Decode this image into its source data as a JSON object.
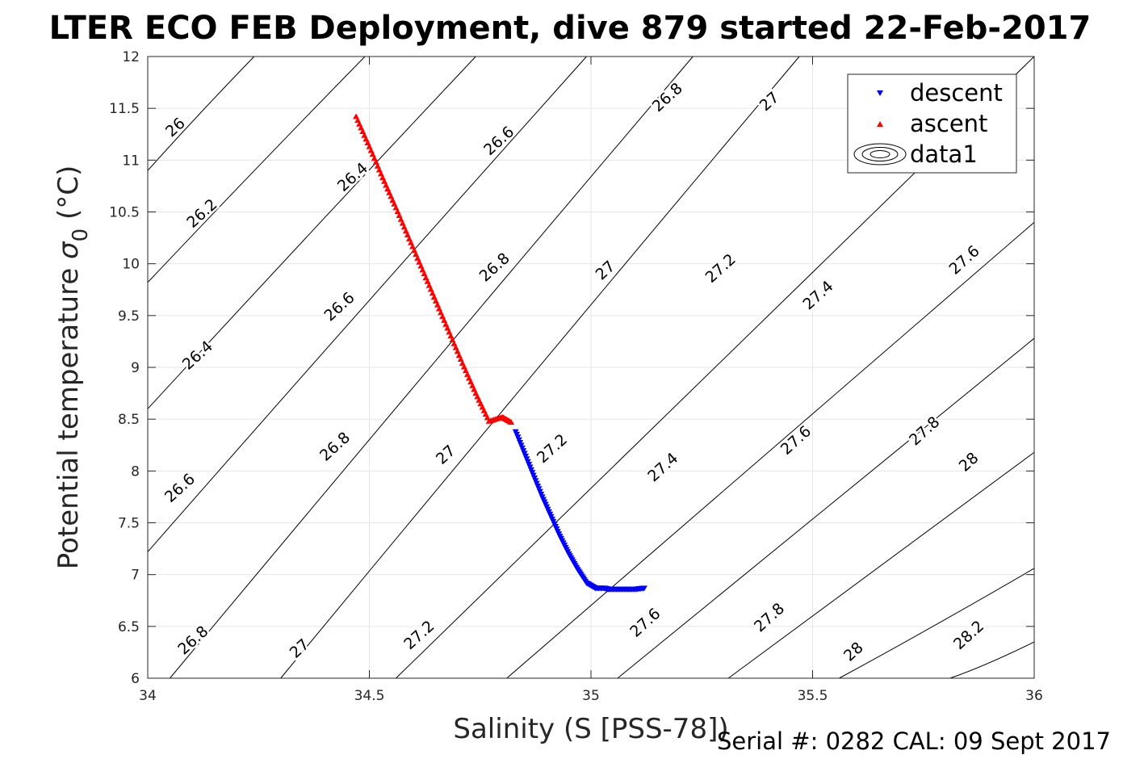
{
  "title": "LTER ECO FEB Deployment, dive 879 started 22-Feb-2017",
  "footer": "Serial #: 0282  CAL: 09 Sept 2017",
  "chart_data": {
    "type": "scatter",
    "title": "LTER ECO FEB Deployment, dive 879 started 22-Feb-2017",
    "xlabel": "Salinity (S [PSS-78])",
    "ylabel_main": "Potential temperature ",
    "ylabel_sigma": "σ",
    "ylabel_sub": "0",
    "ylabel_unit": " (°C)",
    "xlim": [
      34,
      36
    ],
    "ylim": [
      6,
      12
    ],
    "xticks": [
      "34",
      "34.5",
      "35",
      "35.5",
      "36"
    ],
    "yticks": [
      "6",
      "6.5",
      "7",
      "7.5",
      "8",
      "8.5",
      "9",
      "9.5",
      "10",
      "10.5",
      "11",
      "11.5",
      "12"
    ],
    "grid": true,
    "legend_position": "top-right",
    "legend": [
      "descent",
      "ascent",
      "data1"
    ],
    "colors": {
      "descent": "#0000ff",
      "ascent": "#ff0000",
      "contour": "#000000",
      "grid": "#e6e6e6"
    },
    "series": [
      {
        "name": "descent",
        "marker": "triangle-down",
        "x": [
          34.83,
          34.85,
          34.87,
          34.89,
          34.91,
          34.93,
          34.95,
          34.97,
          34.99,
          35.01,
          35.03,
          35.04,
          35.06,
          35.08,
          35.1,
          35.12
        ],
        "y": [
          8.38,
          8.17,
          7.96,
          7.75,
          7.56,
          7.37,
          7.2,
          7.05,
          6.92,
          6.87,
          6.87,
          6.86,
          6.86,
          6.86,
          6.86,
          6.87
        ]
      },
      {
        "name": "ascent",
        "marker": "triangle-up",
        "x": [
          34.47,
          34.5,
          34.53,
          34.56,
          34.59,
          34.62,
          34.65,
          34.68,
          34.71,
          34.74,
          34.77,
          34.8,
          34.82
        ],
        "y": [
          11.42,
          11.13,
          10.83,
          10.54,
          10.24,
          9.94,
          9.64,
          9.34,
          9.04,
          8.75,
          8.48,
          8.52,
          8.47
        ]
      }
    ],
    "isopycnals": [
      {
        "label": "26",
        "points": [
          [
            34.0,
            10.9
          ],
          [
            34.24,
            12.0
          ]
        ]
      },
      {
        "label": "26.2",
        "points": [
          [
            34.0,
            9.82
          ],
          [
            34.49,
            12.0
          ]
        ]
      },
      {
        "label": "26.4",
        "points": [
          [
            34.0,
            8.6
          ],
          [
            34.74,
            12.0
          ]
        ]
      },
      {
        "label": "26.6",
        "points": [
          [
            34.0,
            7.22
          ],
          [
            34.99,
            12.0
          ]
        ]
      },
      {
        "label": "26.8",
        "points": [
          [
            34.05,
            6.0
          ],
          [
            35.23,
            12.0
          ]
        ]
      },
      {
        "label": "27",
        "points": [
          [
            34.3,
            6.0
          ],
          [
            35.47,
            12.0
          ]
        ]
      },
      {
        "label": "27.2",
        "points": [
          [
            34.56,
            6.0
          ],
          [
            36.0,
            12.0
          ]
        ]
      },
      {
        "label": "27.4",
        "points": [
          [
            34.81,
            6.0
          ],
          [
            36.0,
            10.4
          ]
        ]
      },
      {
        "label": "27.6",
        "points": [
          [
            35.06,
            6.0
          ],
          [
            36.0,
            9.28
          ]
        ]
      },
      {
        "label": "27.8",
        "points": [
          [
            35.31,
            6.0
          ],
          [
            36.0,
            8.18
          ]
        ]
      },
      {
        "label": "28",
        "points": [
          [
            35.56,
            6.0
          ],
          [
            36.0,
            7.06
          ]
        ]
      },
      {
        "label": "28.2",
        "points": [
          [
            35.81,
            6.0
          ],
          [
            36.0,
            6.35
          ]
        ]
      }
    ],
    "contour_labels": [
      {
        "text": "26",
        "x": 34.07,
        "y": 11.28
      },
      {
        "text": "26.2",
        "x": 34.13,
        "y": 10.45
      },
      {
        "text": "26.4",
        "x": 34.12,
        "y": 9.08
      },
      {
        "text": "26.6",
        "x": 34.08,
        "y": 7.8
      },
      {
        "text": "26.8",
        "x": 34.11,
        "y": 6.33
      },
      {
        "text": "26.4",
        "x": 34.47,
        "y": 10.8
      },
      {
        "text": "26.6",
        "x": 34.44,
        "y": 9.55
      },
      {
        "text": "26.8",
        "x": 34.43,
        "y": 8.2
      },
      {
        "text": "27",
        "x": 34.35,
        "y": 6.25
      },
      {
        "text": "26.6",
        "x": 34.8,
        "y": 11.15
      },
      {
        "text": "26.8",
        "x": 34.79,
        "y": 9.93
      },
      {
        "text": "27",
        "x": 34.68,
        "y": 8.12
      },
      {
        "text": "27.2",
        "x": 34.62,
        "y": 6.38
      },
      {
        "text": "26.8",
        "x": 35.18,
        "y": 11.57
      },
      {
        "text": "27",
        "x": 35.04,
        "y": 9.9
      },
      {
        "text": "27.2",
        "x": 34.92,
        "y": 8.18
      },
      {
        "text": "27.6",
        "x": 35.13,
        "y": 6.5
      },
      {
        "text": "27",
        "x": 35.41,
        "y": 11.53
      },
      {
        "text": "27.2",
        "x": 35.3,
        "y": 9.92
      },
      {
        "text": "27.4",
        "x": 35.17,
        "y": 8.0
      },
      {
        "text": "27.8",
        "x": 35.41,
        "y": 6.55
      },
      {
        "text": "27.4",
        "x": 35.52,
        "y": 9.66
      },
      {
        "text": "27.6",
        "x": 35.47,
        "y": 8.26
      },
      {
        "text": "28",
        "x": 35.6,
        "y": 6.22
      },
      {
        "text": "27.6",
        "x": 35.85,
        "y": 10.0
      },
      {
        "text": "27.8",
        "x": 35.76,
        "y": 8.35
      },
      {
        "text": "28",
        "x": 35.86,
        "y": 8.05
      },
      {
        "text": "28.2",
        "x": 35.86,
        "y": 6.38
      }
    ]
  }
}
